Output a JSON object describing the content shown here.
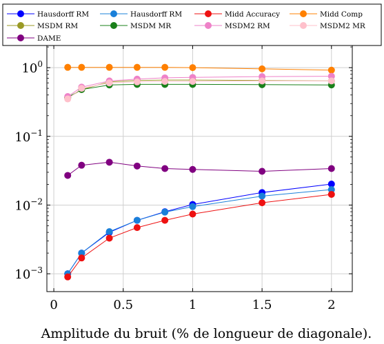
{
  "chart_data": {
    "type": "line",
    "xlabel": "Amplitude du bruit (% de longueur de diagonale).",
    "ylabel": "",
    "title": "",
    "xlim": [
      -0.05,
      2.15
    ],
    "ylim": [
      0.00055,
      2.1
    ],
    "yscale": "log",
    "grid": true,
    "legend_position": "top",
    "x_ticks": [
      0,
      0.5,
      1,
      1.5,
      2
    ],
    "x_tick_labels": [
      "0",
      "0.5",
      "1",
      "1.5",
      "2"
    ],
    "y_ticks": [
      0.001,
      0.01,
      0.1,
      1
    ],
    "y_tick_labels": [
      {
        "base": "10",
        "exp": "−3"
      },
      {
        "base": "10",
        "exp": "−2"
      },
      {
        "base": "10",
        "exp": "−1"
      },
      {
        "base": "10",
        "exp": "0"
      }
    ],
    "x": [
      0.1,
      0.2,
      0.4,
      0.6,
      0.8,
      1.0,
      1.5,
      2.0
    ],
    "series": [
      {
        "name": "Hausdorff RM",
        "color": "#0000ff",
        "values": [
          0.001,
          0.002,
          0.004,
          0.006,
          0.008,
          0.0102,
          0.0152,
          0.0202
        ]
      },
      {
        "name": "Hausdorff RM",
        "color": "#1a80d9",
        "values": [
          0.001,
          0.002,
          0.0041,
          0.006,
          0.0079,
          0.0095,
          0.0135,
          0.0168
        ]
      },
      {
        "name": "Midd Accuracy",
        "color": "#ee1111",
        "values": [
          0.0009,
          0.0017,
          0.0033,
          0.0047,
          0.006,
          0.0074,
          0.0108,
          0.0143
        ]
      },
      {
        "name": "Midd Comp",
        "color": "#ff8000",
        "values": [
          1.01,
          1.01,
          1.01,
          1.01,
          1.01,
          1.0,
          0.96,
          0.92
        ]
      },
      {
        "name": "MSDM RM",
        "color": "#9a9a25",
        "values": [
          0.36,
          0.48,
          0.62,
          0.65,
          0.66,
          0.66,
          0.65,
          0.64
        ]
      },
      {
        "name": "MSDM MR",
        "color": "#1a801a",
        "values": [
          0.37,
          0.48,
          0.56,
          0.57,
          0.57,
          0.57,
          0.565,
          0.56
        ]
      },
      {
        "name": "MSDM2 RM",
        "color": "#ee82c8",
        "values": [
          0.38,
          0.52,
          0.64,
          0.68,
          0.71,
          0.72,
          0.74,
          0.75
        ]
      },
      {
        "name": "MSDM2 MR",
        "color": "#ffc0cb",
        "values": [
          0.35,
          0.5,
          0.6,
          0.62,
          0.63,
          0.63,
          0.64,
          0.64
        ]
      },
      {
        "name": "DAME",
        "color": "#800080",
        "values": [
          0.027,
          0.038,
          0.042,
          0.037,
          0.034,
          0.033,
          0.031,
          0.034
        ]
      }
    ]
  }
}
